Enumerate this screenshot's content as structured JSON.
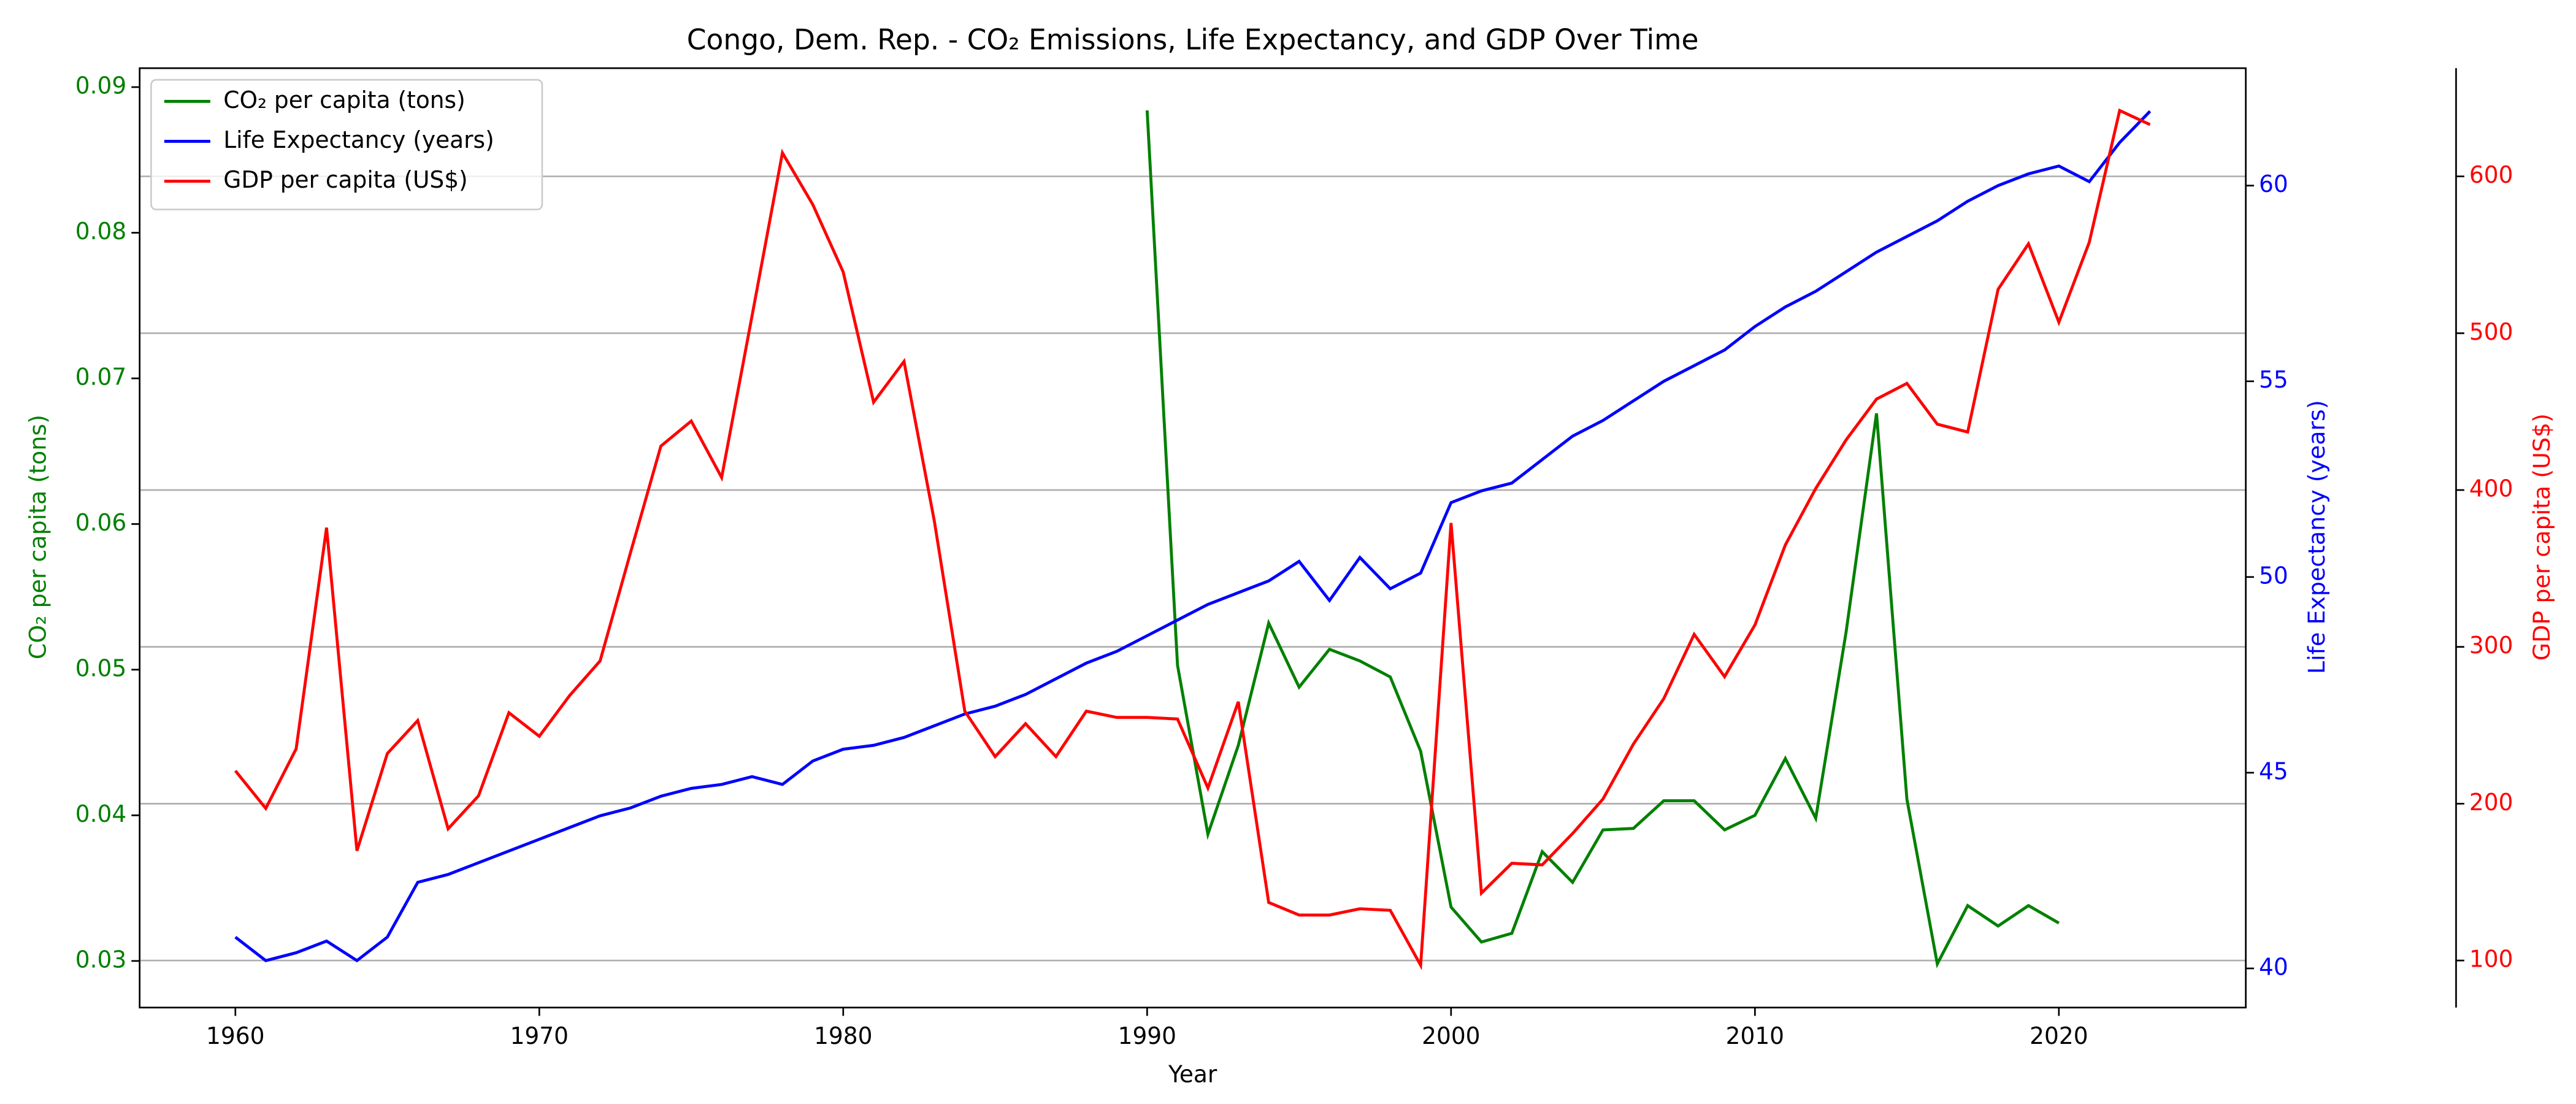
{
  "chart_data": {
    "type": "line",
    "title": "Congo, Dem. Rep. - CO₂ Emissions, Life Expectancy, and GDP Over Time",
    "xlabel": "Year",
    "ylabel": "CO₂ per capita (tons)",
    "y2label": "Life Expectancy (years)",
    "y3label": "GDP per capita (US$)",
    "x": [
      1960,
      1961,
      1962,
      1963,
      1964,
      1965,
      1966,
      1967,
      1968,
      1969,
      1970,
      1971,
      1972,
      1973,
      1974,
      1975,
      1976,
      1977,
      1978,
      1979,
      1980,
      1981,
      1982,
      1983,
      1984,
      1985,
      1986,
      1987,
      1988,
      1989,
      1990,
      1991,
      1992,
      1993,
      1994,
      1995,
      1996,
      1997,
      1998,
      1999,
      2000,
      2001,
      2002,
      2003,
      2004,
      2005,
      2006,
      2007,
      2008,
      2009,
      2010,
      2011,
      2012,
      2013,
      2014,
      2015,
      2016,
      2017,
      2018,
      2019,
      2020,
      2021,
      2022,
      2023
    ],
    "xlim": [
      1956.85,
      2026.15
    ],
    "xticks": [
      1960,
      1970,
      1980,
      1990,
      2000,
      2010,
      2020
    ],
    "ylim": [
      0.0268,
      0.0913
    ],
    "yticks": [
      0.03,
      0.04,
      0.05,
      0.06,
      0.07,
      0.08,
      0.09
    ],
    "y2lim": [
      39.0,
      63.0
    ],
    "y2ticks": [
      40,
      45,
      50,
      55,
      60
    ],
    "y3lim": [
      70,
      669
    ],
    "y3ticks": [
      100,
      200,
      300,
      400,
      500,
      600
    ],
    "grid": true,
    "grid_axis": "y3",
    "legend": "upper left",
    "series": [
      {
        "name": "CO₂ per capita (tons)",
        "color": "#008000",
        "axis": "y",
        "values": [
          null,
          null,
          null,
          null,
          null,
          null,
          null,
          null,
          null,
          null,
          null,
          null,
          null,
          null,
          null,
          null,
          null,
          null,
          null,
          null,
          null,
          null,
          null,
          null,
          null,
          null,
          null,
          null,
          null,
          null,
          0.0884,
          0.0503,
          0.0387,
          0.0448,
          0.0532,
          0.0488,
          0.0514,
          0.0506,
          0.0495,
          0.0444,
          0.0337,
          0.0313,
          0.0319,
          0.0375,
          0.0354,
          0.039,
          0.0391,
          0.041,
          0.041,
          0.039,
          0.04,
          0.0439,
          0.0398,
          0.0526,
          0.0676,
          0.0411,
          0.0298,
          0.0338,
          0.0324,
          0.0338,
          0.0326,
          null,
          null,
          null
        ]
      },
      {
        "name": "Life Expectancy (years)",
        "color": "#0000ff",
        "axis": "y2",
        "values": [
          40.8,
          40.2,
          40.4,
          40.7,
          40.2,
          40.8,
          42.2,
          42.4,
          42.7,
          43.0,
          43.3,
          43.6,
          43.9,
          44.1,
          44.4,
          44.6,
          44.7,
          44.9,
          44.7,
          45.3,
          45.6,
          45.7,
          45.9,
          46.2,
          46.5,
          46.7,
          47.0,
          47.4,
          47.8,
          48.1,
          48.5,
          48.9,
          49.3,
          49.6,
          49.9,
          50.4,
          49.4,
          50.5,
          49.7,
          50.1,
          51.9,
          52.2,
          52.4,
          53.0,
          53.6,
          54.0,
          54.5,
          55.0,
          55.4,
          55.8,
          56.4,
          56.9,
          57.3,
          57.8,
          58.3,
          58.7,
          59.1,
          59.6,
          60.0,
          60.3,
          60.5,
          60.1,
          61.1,
          61.9
        ]
      },
      {
        "name": "GDP per capita (US$)",
        "color": "#ff0000",
        "axis": "y3",
        "values": [
          221,
          197,
          235,
          376,
          170,
          232,
          253,
          184,
          205,
          258,
          243,
          269,
          291,
          360,
          428,
          444,
          408,
          511,
          615,
          582,
          539,
          456,
          482,
          380,
          259,
          230,
          251,
          230,
          259,
          255,
          255,
          254,
          210,
          265,
          137,
          129,
          129,
          133,
          132,
          97,
          379,
          143,
          162,
          161,
          181,
          203,
          238,
          267,
          308,
          281,
          314,
          365,
          401,
          432,
          458,
          468,
          442,
          437,
          528,
          557,
          507,
          558,
          642,
          633
        ]
      }
    ]
  }
}
